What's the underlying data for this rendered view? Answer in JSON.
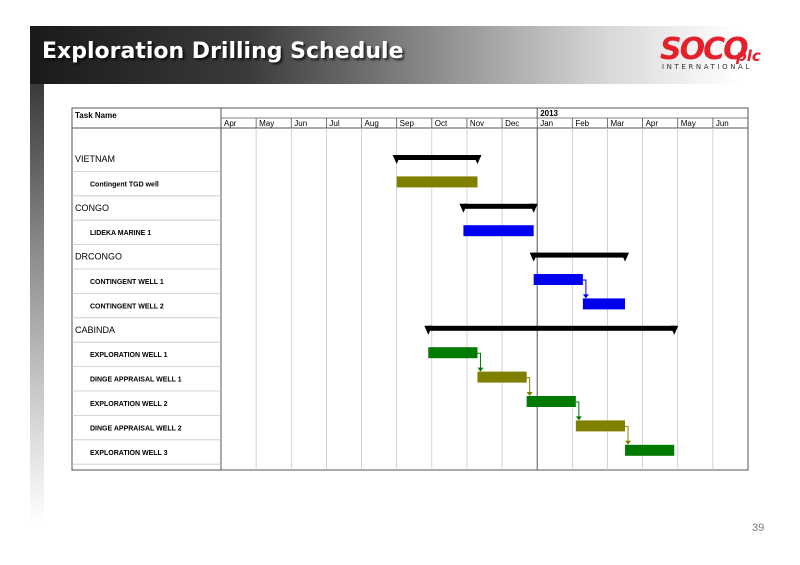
{
  "slide": {
    "title": "Exploration Drilling Schedule",
    "page_number": "39"
  },
  "logo": {
    "main": "SOCO",
    "suffix": "plc",
    "sub": "INTERNATIONAL"
  },
  "colors": {
    "summary": "#000000",
    "olive": "#808000",
    "blue": "#0000ee",
    "green": "#007a00",
    "logo_red": "#e3202b"
  },
  "gantt": {
    "header_label": "Task Name",
    "year_label": "2013",
    "year_starts_at_month_index": 9,
    "months": [
      "Apr",
      "May",
      "Jun",
      "Jul",
      "Aug",
      "Sep",
      "Oct",
      "Nov",
      "Dec",
      "Jan",
      "Feb",
      "Mar",
      "Apr",
      "May",
      "Jun"
    ],
    "tasks": [
      {
        "name": "VIETNAM",
        "kind": "group",
        "start": 5.0,
        "end": 7.3,
        "type": "summary"
      },
      {
        "name": "Contingent TGD well",
        "kind": "task",
        "start": 5.0,
        "end": 7.3,
        "color": "olive"
      },
      {
        "name": "CONGO",
        "kind": "group",
        "start": 6.9,
        "end": 8.9,
        "type": "summary"
      },
      {
        "name": "LIDEKA MARINE 1",
        "kind": "task",
        "start": 6.9,
        "end": 8.9,
        "color": "blue"
      },
      {
        "name": "DRCONGO",
        "kind": "group",
        "start": 8.9,
        "end": 11.5,
        "type": "summary"
      },
      {
        "name": "CONTINGENT WELL 1",
        "kind": "task",
        "start": 8.9,
        "end": 10.3,
        "color": "blue"
      },
      {
        "name": "CONTINGENT WELL 2",
        "kind": "task",
        "start": 10.3,
        "end": 11.5,
        "color": "blue"
      },
      {
        "name": "CABINDA",
        "kind": "group",
        "start": 5.9,
        "end": 12.9,
        "type": "summary"
      },
      {
        "name": "EXPLORATION WELL 1",
        "kind": "task",
        "start": 5.9,
        "end": 7.3,
        "color": "green"
      },
      {
        "name": "DINGE APPRAISAL WELL 1",
        "kind": "task",
        "start": 7.3,
        "end": 8.7,
        "color": "olive"
      },
      {
        "name": "EXPLORATION WELL 2",
        "kind": "task",
        "start": 8.7,
        "end": 10.1,
        "color": "green"
      },
      {
        "name": "DINGE APPRAISAL WELL 2",
        "kind": "task",
        "start": 10.1,
        "end": 11.5,
        "color": "olive"
      },
      {
        "name": "EXPLORATION WELL 3",
        "kind": "task",
        "start": 11.5,
        "end": 12.9,
        "color": "green"
      }
    ],
    "dependencies": [
      {
        "from": 5,
        "to": 6,
        "color": "blue"
      },
      {
        "from": 8,
        "to": 9,
        "color": "green"
      },
      {
        "from": 9,
        "to": 10,
        "color": "olive"
      },
      {
        "from": 10,
        "to": 11,
        "color": "green"
      },
      {
        "from": 11,
        "to": 12,
        "color": "olive"
      }
    ]
  }
}
